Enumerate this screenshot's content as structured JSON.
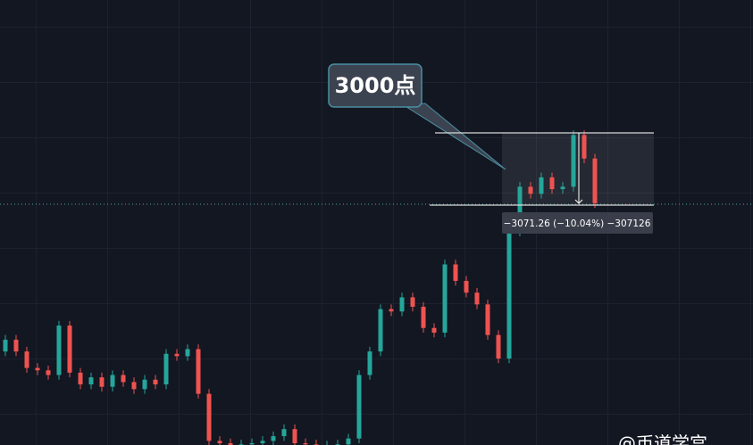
{
  "chart_data": {
    "type": "candlestick",
    "ylim": [
      17325,
      36237
    ],
    "up_color": "#26a69a",
    "down_color": "#ef5350",
    "open": [
      21300,
      21800,
      21300,
      20600,
      20500,
      20300,
      22400,
      20400,
      19900,
      20200,
      19800,
      20300,
      20000,
      19700,
      20100,
      19900,
      21200,
      21100,
      21400,
      19500,
      17500,
      17400,
      17300,
      17350,
      17400,
      17500,
      17700,
      18000,
      17400,
      17350,
      17300,
      17300,
      17350,
      17600,
      20300,
      21300,
      23100,
      23000,
      23600,
      23200,
      22300,
      22100,
      25000,
      24300,
      23800,
      23300,
      22000,
      21000,
      26400,
      28300,
      28000,
      28700,
      28200,
      28300,
      30500,
      29500
    ],
    "high": [
      22000,
      22000,
      21500,
      20800,
      20700,
      22600,
      22600,
      20600,
      20400,
      20400,
      20500,
      20500,
      20200,
      20300,
      20300,
      21400,
      21400,
      21600,
      21600,
      19700,
      17700,
      17600,
      17550,
      17600,
      17700,
      17900,
      18200,
      18200,
      17600,
      17550,
      17500,
      17550,
      17800,
      20500,
      21500,
      23300,
      23300,
      23800,
      23800,
      23400,
      22500,
      25200,
      25200,
      24500,
      24000,
      23500,
      22200,
      26600,
      28500,
      28500,
      28900,
      28900,
      28500,
      30700,
      30700,
      29700
    ],
    "low": [
      21100,
      21100,
      20400,
      20300,
      20100,
      20100,
      20200,
      19700,
      19700,
      19600,
      19600,
      19800,
      19500,
      19500,
      19700,
      19700,
      20900,
      20900,
      19300,
      17300,
      17200,
      17100,
      17100,
      17150,
      17200,
      17300,
      17500,
      17200,
      17150,
      17100,
      17100,
      17100,
      17150,
      17400,
      20100,
      21100,
      22800,
      22800,
      23000,
      22100,
      21900,
      21900,
      24100,
      23600,
      23100,
      21800,
      20800,
      20800,
      26200,
      27800,
      27800,
      28000,
      28000,
      28100,
      29300,
      27400
    ],
    "close": [
      21800,
      21300,
      20600,
      20500,
      20300,
      22400,
      20400,
      19900,
      20200,
      19800,
      20300,
      20000,
      19700,
      20100,
      19900,
      21200,
      21100,
      21400,
      19500,
      17500,
      17400,
      17300,
      17350,
      17400,
      17500,
      17700,
      18000,
      17400,
      17350,
      17300,
      17300,
      17350,
      17600,
      20300,
      21300,
      23100,
      23000,
      23600,
      23200,
      22300,
      22100,
      25000,
      24300,
      23800,
      23300,
      22000,
      21000,
      26400,
      28300,
      28000,
      28700,
      28200,
      28300,
      30500,
      29500,
      27600
    ],
    "price_line": 27560,
    "measure": {
      "high": 30590,
      "low": 27519,
      "label": "−3071.26 (−10.04%) −307126"
    },
    "callout": "3000点",
    "watermark": "@币道学宫"
  }
}
